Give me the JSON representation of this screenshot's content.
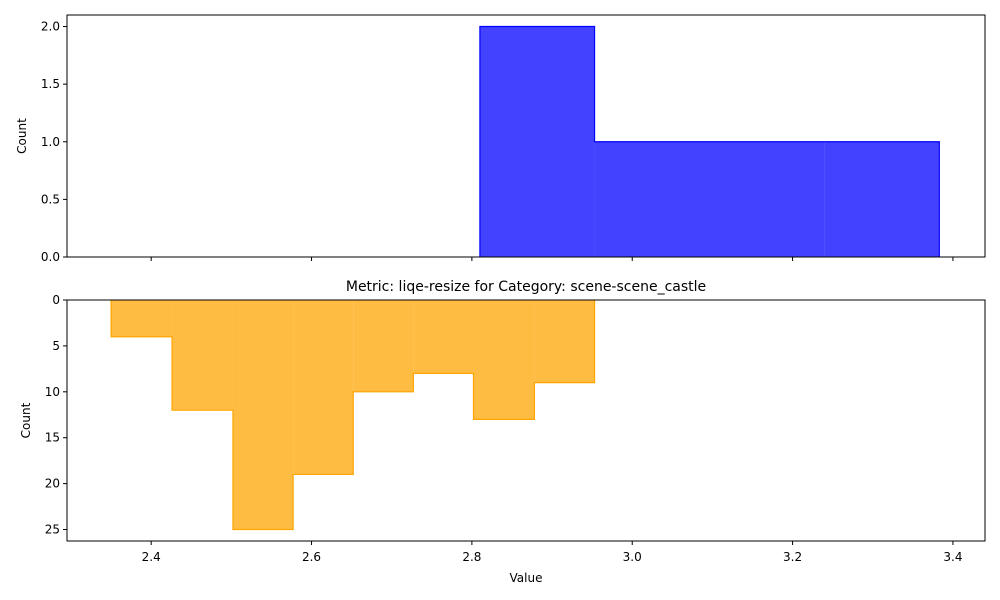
{
  "chart_data": [
    {
      "type": "histogram-step",
      "title": "",
      "xlabel": "",
      "ylabel": "Count",
      "xlim": [
        2.295,
        3.44
      ],
      "ylim": [
        0,
        2.1
      ],
      "yticks": [
        0.0,
        0.5,
        1.0,
        1.5,
        2.0
      ],
      "ytick_labels": [
        "0.0",
        "0.5",
        "1.0",
        "1.5",
        "2.0"
      ],
      "xticks": [
        2.4,
        2.6,
        2.8,
        3.0,
        3.2,
        3.4
      ],
      "xtick_labels_shown": false,
      "y_inverted": false,
      "color": "#0000ff",
      "bins": [
        {
          "x0": 2.81,
          "x1": 2.953,
          "count": 2
        },
        {
          "x0": 2.953,
          "x1": 3.097,
          "count": 1
        },
        {
          "x0": 3.097,
          "x1": 3.24,
          "count": 1
        },
        {
          "x0": 3.24,
          "x1": 3.383,
          "count": 1
        }
      ]
    },
    {
      "type": "histogram-step",
      "title": "Metric: liqe-resize for Category: scene-scene_castle",
      "xlabel": "Value",
      "ylabel": "Count",
      "xlim": [
        2.295,
        3.44
      ],
      "ylim": [
        0,
        26.25
      ],
      "yticks": [
        0,
        5,
        10,
        15,
        20,
        25
      ],
      "ytick_labels": [
        "0",
        "5",
        "10",
        "15",
        "20",
        "25"
      ],
      "xticks": [
        2.4,
        2.6,
        2.8,
        3.0,
        3.2,
        3.4
      ],
      "xtick_labels": [
        "2.4",
        "2.6",
        "2.8",
        "3.0",
        "3.2",
        "3.4"
      ],
      "xtick_labels_shown": true,
      "y_inverted": true,
      "color": "#ffa500",
      "bins": [
        {
          "x0": 2.35,
          "x1": 2.426,
          "count": 4
        },
        {
          "x0": 2.426,
          "x1": 2.502,
          "count": 12
        },
        {
          "x0": 2.502,
          "x1": 2.577,
          "count": 25
        },
        {
          "x0": 2.577,
          "x1": 2.652,
          "count": 19
        },
        {
          "x0": 2.652,
          "x1": 2.727,
          "count": 10
        },
        {
          "x0": 2.727,
          "x1": 2.802,
          "count": 8
        },
        {
          "x0": 2.802,
          "x1": 2.878,
          "count": 13
        },
        {
          "x0": 2.878,
          "x1": 2.953,
          "count": 9
        }
      ]
    }
  ]
}
